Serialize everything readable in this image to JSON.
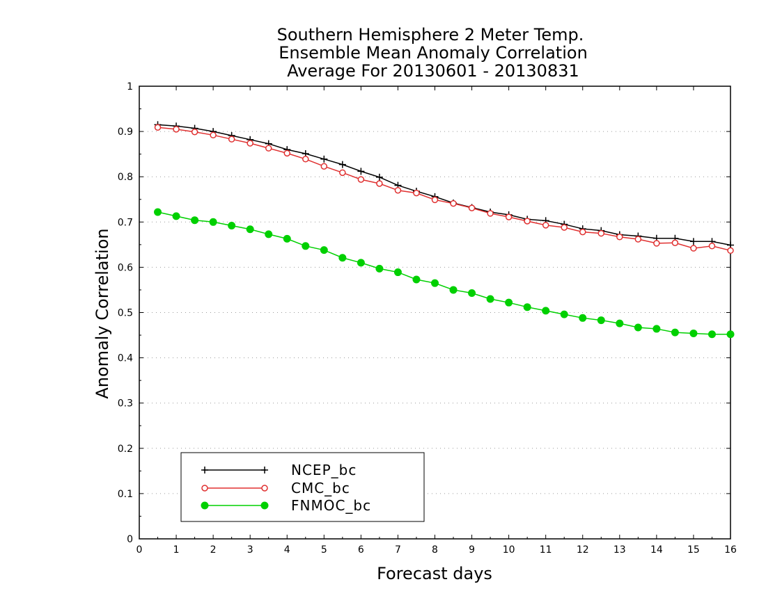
{
  "chart_data": {
    "type": "line",
    "title": [
      "Southern Hemisphere 2 Meter Temp.",
      "Ensemble Mean Anomaly Correlation",
      "Average For 20130601 - 20130831"
    ],
    "xlabel": "Forecast days",
    "ylabel": "Anomaly Correlation",
    "xlim": [
      0,
      16
    ],
    "ylim": [
      0,
      1
    ],
    "xticks": [
      0,
      1,
      2,
      3,
      4,
      5,
      6,
      7,
      8,
      9,
      10,
      11,
      12,
      13,
      14,
      15,
      16
    ],
    "xtick_labels": [
      "0",
      "1",
      "2",
      "3",
      "4",
      "5",
      "6",
      "7",
      "8",
      "9",
      "10",
      "11",
      "12",
      "13",
      "14",
      "15",
      "16"
    ],
    "yticks": [
      0,
      0.1,
      0.2,
      0.3,
      0.4,
      0.5,
      0.6,
      0.7,
      0.8,
      0.9,
      1
    ],
    "ytick_labels": [
      "0",
      "0.1",
      "0.2",
      "0.3",
      "0.4",
      "0.5",
      "0.6",
      "0.7",
      "0.8",
      "0.9",
      "1"
    ],
    "grid": "horizontal dotted",
    "legend_position": "bottom-left",
    "x": [
      0.5,
      1,
      1.5,
      2,
      2.5,
      3,
      3.5,
      4,
      4.5,
      5,
      5.5,
      6,
      6.5,
      7,
      7.5,
      8,
      8.5,
      9,
      9.5,
      10,
      10.5,
      11,
      11.5,
      12,
      12.5,
      13,
      13.5,
      14,
      14.5,
      15,
      15.5,
      16
    ],
    "series": [
      {
        "name": "NCEP_bc",
        "color": "#000000",
        "marker": "plus",
        "values": [
          0.915,
          0.912,
          0.907,
          0.9,
          0.891,
          0.882,
          0.873,
          0.86,
          0.851,
          0.839,
          0.827,
          0.812,
          0.799,
          0.781,
          0.768,
          0.756,
          0.742,
          0.732,
          0.722,
          0.716,
          0.706,
          0.703,
          0.695,
          0.685,
          0.681,
          0.672,
          0.669,
          0.664,
          0.664,
          0.657,
          0.657,
          0.649
        ]
      },
      {
        "name": "CMC_bc",
        "color": "#e03030",
        "marker": "open-circle",
        "values": [
          0.909,
          0.905,
          0.899,
          0.892,
          0.883,
          0.874,
          0.863,
          0.852,
          0.839,
          0.823,
          0.809,
          0.794,
          0.785,
          0.77,
          0.764,
          0.749,
          0.741,
          0.731,
          0.719,
          0.711,
          0.702,
          0.693,
          0.688,
          0.678,
          0.675,
          0.667,
          0.662,
          0.653,
          0.654,
          0.642,
          0.647,
          0.637
        ]
      },
      {
        "name": "FNMOC_bc",
        "color": "#00d000",
        "marker": "filled-circle",
        "values": [
          0.722,
          0.713,
          0.704,
          0.7,
          0.692,
          0.684,
          0.673,
          0.663,
          0.647,
          0.638,
          0.621,
          0.61,
          0.597,
          0.589,
          0.573,
          0.565,
          0.55,
          0.543,
          0.53,
          0.522,
          0.512,
          0.504,
          0.496,
          0.488,
          0.483,
          0.476,
          0.467,
          0.464,
          0.456,
          0.454,
          0.452,
          0.452
        ]
      }
    ]
  }
}
